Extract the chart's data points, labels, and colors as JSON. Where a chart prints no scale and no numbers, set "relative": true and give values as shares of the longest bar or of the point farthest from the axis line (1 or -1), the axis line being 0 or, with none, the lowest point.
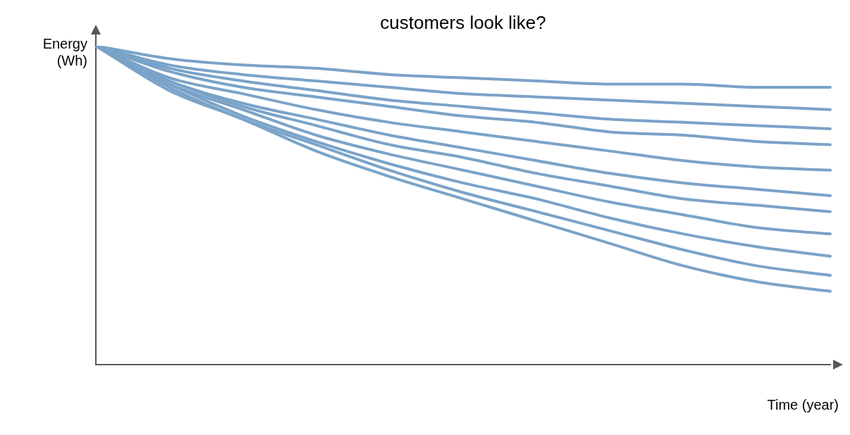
{
  "chart_data": {
    "type": "line",
    "title": "customers look like?",
    "xlabel": "Time (year)",
    "ylabel": "Energy\n(Wh)",
    "relative": true,
    "legend": false,
    "grid": false,
    "marker": "none",
    "line_style": "solid",
    "categories": [
      null,
      null,
      null,
      null,
      null,
      null,
      null,
      null,
      null,
      null,
      null
    ],
    "series": [
      {
        "color": "#7aa3c8",
        "values": [
          1,
          0.96,
          0.94,
          0.93,
          0.91,
          0.9,
          0.89,
          0.88,
          0.88,
          0.87,
          0.87
        ]
      },
      {
        "color": "#7aa3c8",
        "values": [
          1,
          0.94,
          0.91,
          0.89,
          0.87,
          0.85,
          0.84,
          0.83,
          0.82,
          0.81,
          0.8
        ]
      },
      {
        "color": "#7aa3c8",
        "values": [
          1,
          0.93,
          0.89,
          0.86,
          0.83,
          0.81,
          0.79,
          0.77,
          0.76,
          0.75,
          0.74
        ]
      },
      {
        "color": "#7aa3c8",
        "values": [
          1,
          0.92,
          0.87,
          0.84,
          0.81,
          0.78,
          0.76,
          0.73,
          0.72,
          0.7,
          0.69
        ]
      },
      {
        "color": "#7aa3c8",
        "values": [
          1,
          0.9,
          0.85,
          0.8,
          0.76,
          0.73,
          0.7,
          0.67,
          0.64,
          0.62,
          0.61
        ]
      },
      {
        "color": "#7aa3c8",
        "values": [
          1,
          0.89,
          0.82,
          0.77,
          0.72,
          0.68,
          0.64,
          0.6,
          0.57,
          0.55,
          0.53
        ]
      },
      {
        "color": "#7aa3c8",
        "values": [
          1,
          0.89,
          0.81,
          0.75,
          0.69,
          0.65,
          0.6,
          0.56,
          0.52,
          0.5,
          0.48
        ]
      },
      {
        "color": "#7aa3c8",
        "values": [
          1,
          0.88,
          0.8,
          0.72,
          0.66,
          0.61,
          0.56,
          0.51,
          0.47,
          0.43,
          0.41
        ]
      },
      {
        "color": "#7aa3c8",
        "values": [
          1,
          0.88,
          0.78,
          0.7,
          0.63,
          0.57,
          0.52,
          0.46,
          0.41,
          0.37,
          0.34
        ]
      },
      {
        "color": "#7aa3c8",
        "values": [
          1,
          0.87,
          0.77,
          0.69,
          0.61,
          0.54,
          0.48,
          0.42,
          0.36,
          0.31,
          0.28
        ]
      },
      {
        "color": "#7aa3c8",
        "values": [
          1,
          0.86,
          0.77,
          0.67,
          0.59,
          0.52,
          0.45,
          0.38,
          0.31,
          0.26,
          0.23
        ]
      }
    ]
  }
}
